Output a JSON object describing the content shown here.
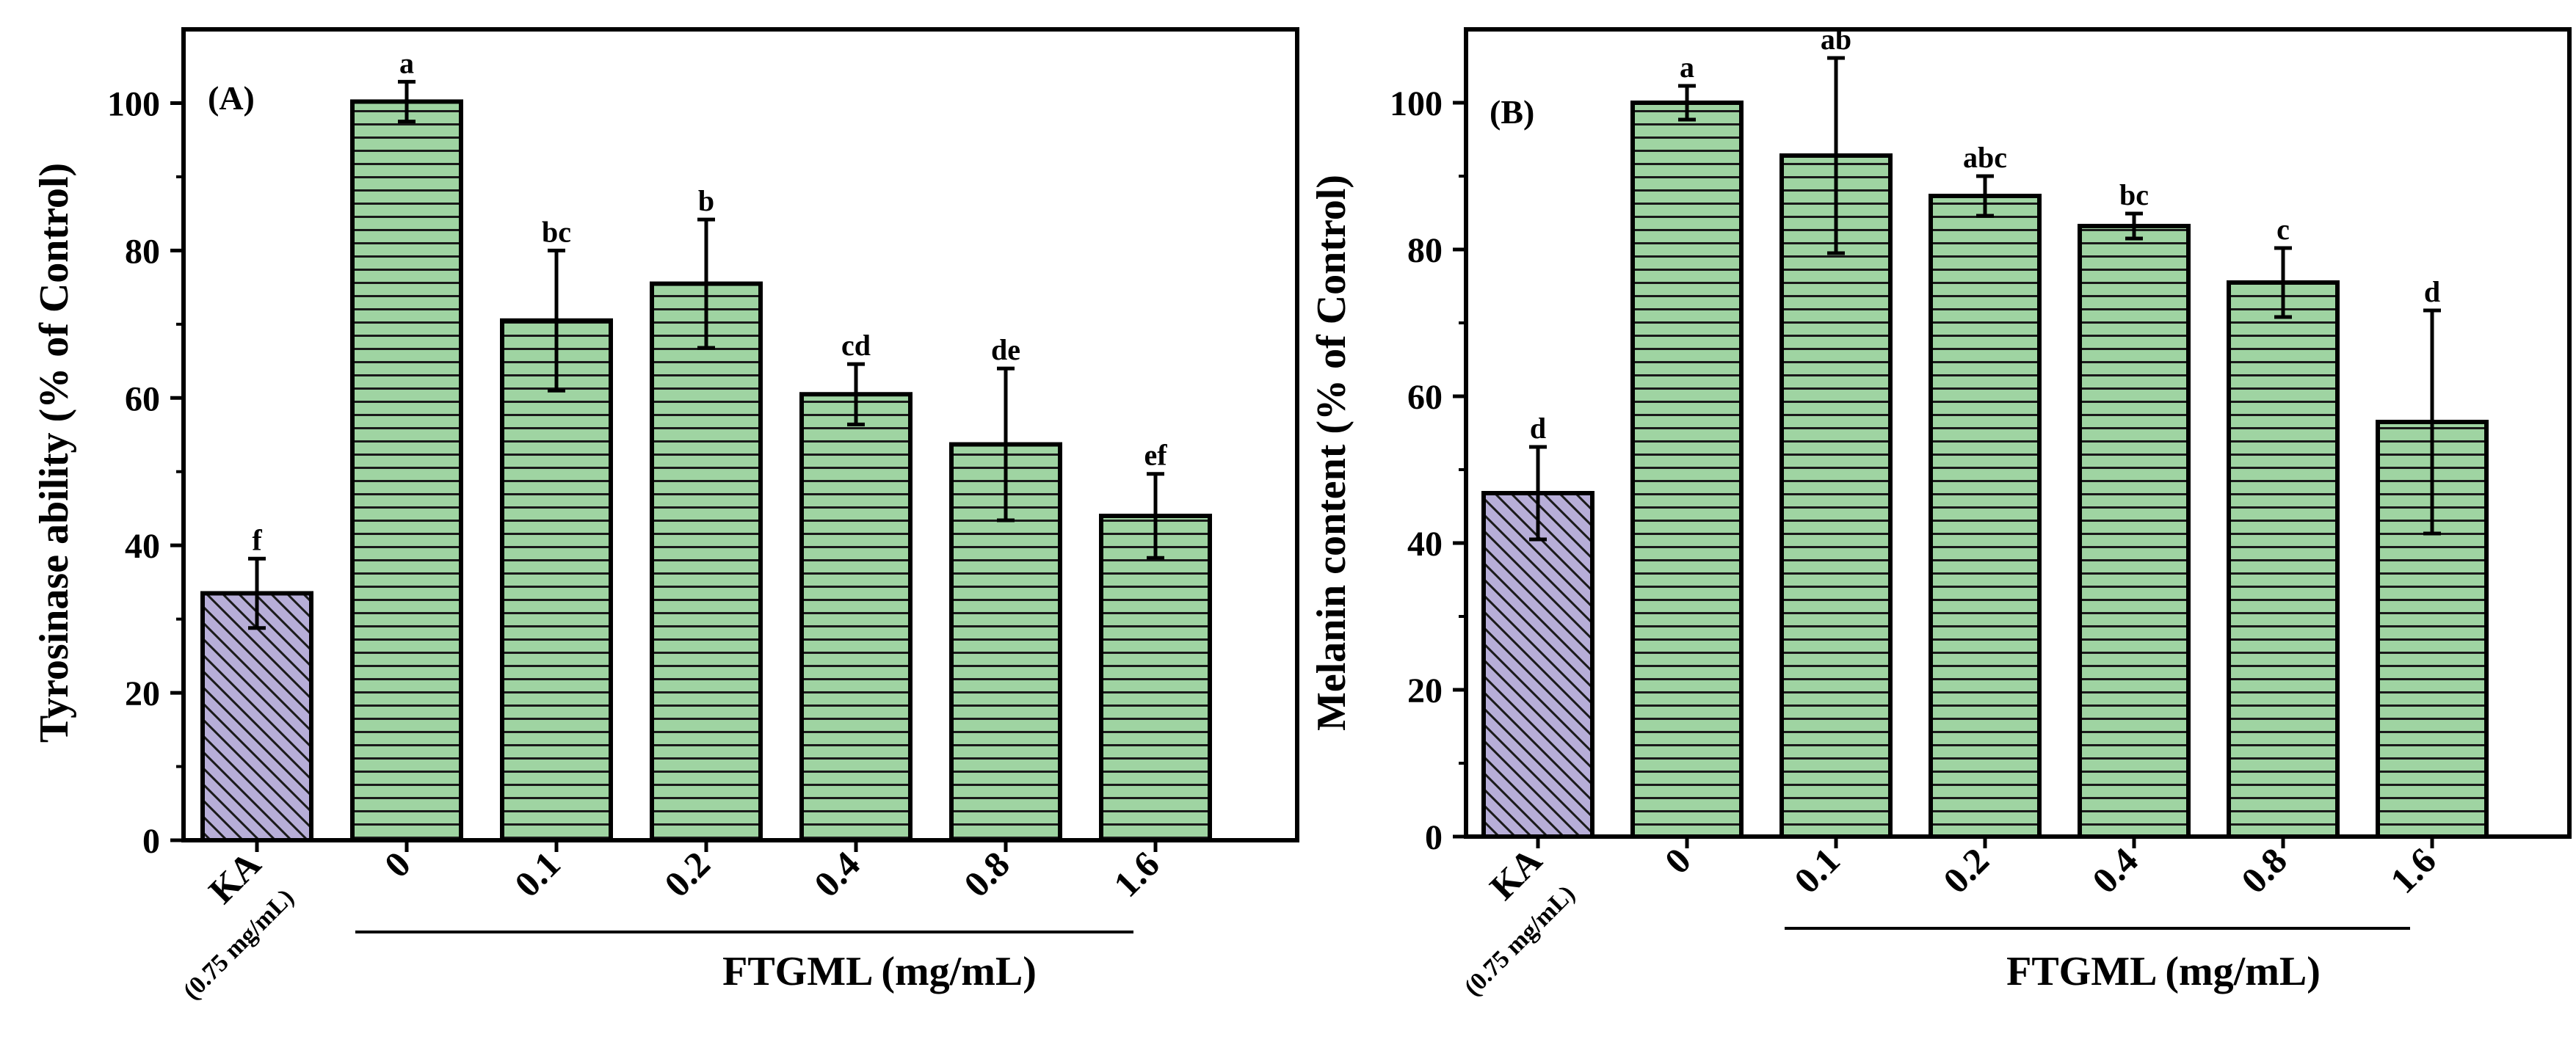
{
  "colors": {
    "bar_fill": "#9fd4a2",
    "bar_stripe": "#1a1a1a",
    "ka_fill": "#b7aed8",
    "ka_hatch": "#1a1a1a",
    "axis": "#000000"
  },
  "chart_data": [
    {
      "type": "bar",
      "panel_label": "(A)",
      "ylabel": "Tyrosinase ability (% of Control)",
      "xlabel": "FTGML (mg/mL)",
      "ylim": [
        0,
        110
      ],
      "yticks": [
        0,
        20,
        40,
        60,
        80,
        100
      ],
      "categories": [
        "KA",
        "0",
        "0.1",
        "0.2",
        "0.4",
        "0.8",
        "1.6"
      ],
      "category_sublabels": [
        "(0.75 mg/mL)",
        "",
        "",
        "",
        "",
        "",
        ""
      ],
      "values": [
        33.5,
        100.2,
        70.5,
        75.5,
        60.5,
        53.7,
        44.0
      ],
      "errors": [
        4.7,
        2.7,
        9.5,
        8.7,
        4.1,
        10.3,
        5.7
      ],
      "significance": [
        "f",
        "a",
        "bc",
        "b",
        "cd",
        "de",
        "ef"
      ],
      "group_line_categories": [
        "0",
        "1.6"
      ]
    },
    {
      "type": "bar",
      "panel_label": "(B)",
      "ylabel": "Melanin content (% of Control)",
      "xlabel": "FTGML (mg/mL)",
      "ylim": [
        0,
        110
      ],
      "yticks": [
        0,
        20,
        40,
        60,
        80,
        100
      ],
      "categories": [
        "KA",
        "0",
        "0.1",
        "0.2",
        "0.4",
        "0.8",
        "1.6"
      ],
      "category_sublabels": [
        "(0.75 mg/mL)",
        "",
        "",
        "",
        "",
        "",
        ""
      ],
      "values": [
        46.8,
        100.0,
        92.8,
        87.3,
        83.2,
        75.5,
        56.5
      ],
      "errors": [
        6.3,
        2.3,
        13.3,
        2.7,
        1.7,
        4.7,
        15.2
      ],
      "significance": [
        "d",
        "a",
        "ab",
        "abc",
        "bc",
        "c",
        "d"
      ],
      "group_line_categories": [
        "0.1",
        "1.6"
      ]
    }
  ]
}
